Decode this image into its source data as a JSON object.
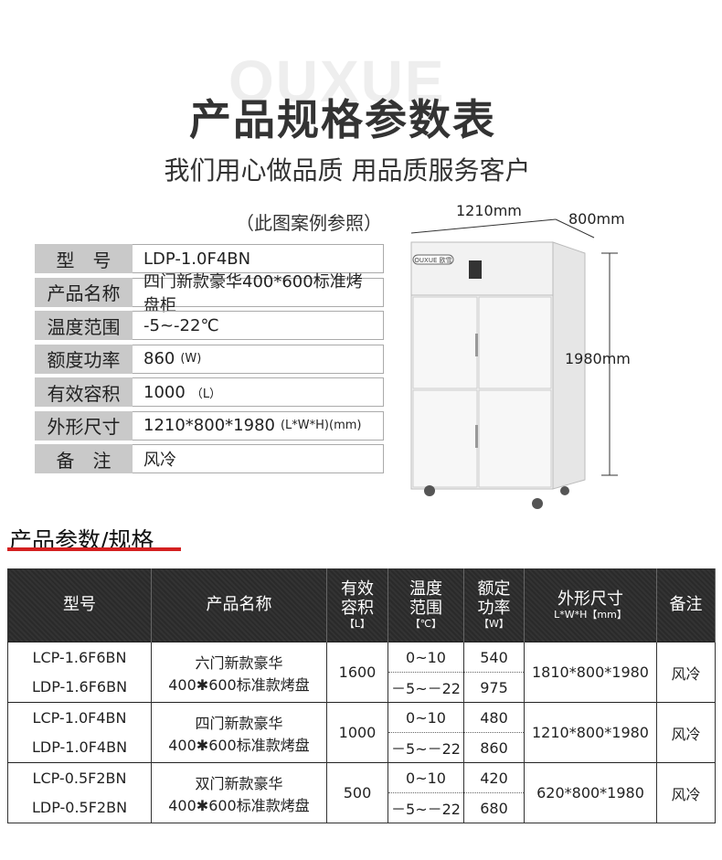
{
  "watermark": "OUXUE",
  "title": "产品规格参数表",
  "subtitle": "我们用心做品质 用品质服务客户",
  "caption": "（此图案例参照）",
  "spec": [
    {
      "label": "型　号",
      "value": "LDP-1.0F4BN",
      "unit": ""
    },
    {
      "label": "产品名称",
      "value": "四门新款豪华400*600标准烤盘柜",
      "unit": ""
    },
    {
      "label": "温度范围",
      "value": "-5~-22℃",
      "unit": ""
    },
    {
      "label": "额度功率",
      "value": "860",
      "unit": "(W)"
    },
    {
      "label": "有效容积",
      "value": "1000",
      "unit": "（L）"
    },
    {
      "label": "外形尺寸",
      "value": "1210*800*1980",
      "unit": "(L*W*H)(mm)"
    },
    {
      "label": "备　注",
      "value": "风冷",
      "unit": ""
    }
  ],
  "diagram": {
    "width": "1210mm",
    "depth": "800mm",
    "height": "1980mm",
    "brand": "OUXUE 欧雪"
  },
  "section_title": "产品参数/规格",
  "table": {
    "headers": [
      {
        "t": "型号",
        "u": ""
      },
      {
        "t": "产品名称",
        "u": ""
      },
      {
        "t": "有效容积",
        "u": "【L】"
      },
      {
        "t": "温度范围",
        "u": "【℃】"
      },
      {
        "t": "额定功率",
        "u": "【W】"
      },
      {
        "t": "外形尺寸",
        "u": "L*W*H【mm】"
      },
      {
        "t": "备注",
        "u": ""
      }
    ],
    "groups": [
      {
        "models": [
          "LCP-1.6F6BN",
          "LDP-1.6F6BN"
        ],
        "name1": "六门新款豪华",
        "name2": "400✱600标准款烤盘",
        "volume": "1600",
        "temps": [
          "0~10",
          "－5~－22"
        ],
        "powers": [
          "540",
          "975"
        ],
        "size": "1810*800*1980",
        "note": "风冷"
      },
      {
        "models": [
          "LCP-1.0F4BN",
          "LDP-1.0F4BN"
        ],
        "name1": "四门新款豪华",
        "name2": "400✱600标准款烤盘",
        "volume": "1000",
        "temps": [
          "0~10",
          "－5~－22"
        ],
        "powers": [
          "480",
          "860"
        ],
        "size": "1210*800*1980",
        "note": "风冷"
      },
      {
        "models": [
          "LCP-0.5F2BN",
          "LDP-0.5F2BN"
        ],
        "name1": "双门新款豪华",
        "name2": "400✱600标准款烤盘",
        "volume": "500",
        "temps": [
          "0~10",
          "－5~－22"
        ],
        "powers": [
          "420",
          "680"
        ],
        "size": "620*800*1980",
        "note": "风冷"
      }
    ]
  }
}
